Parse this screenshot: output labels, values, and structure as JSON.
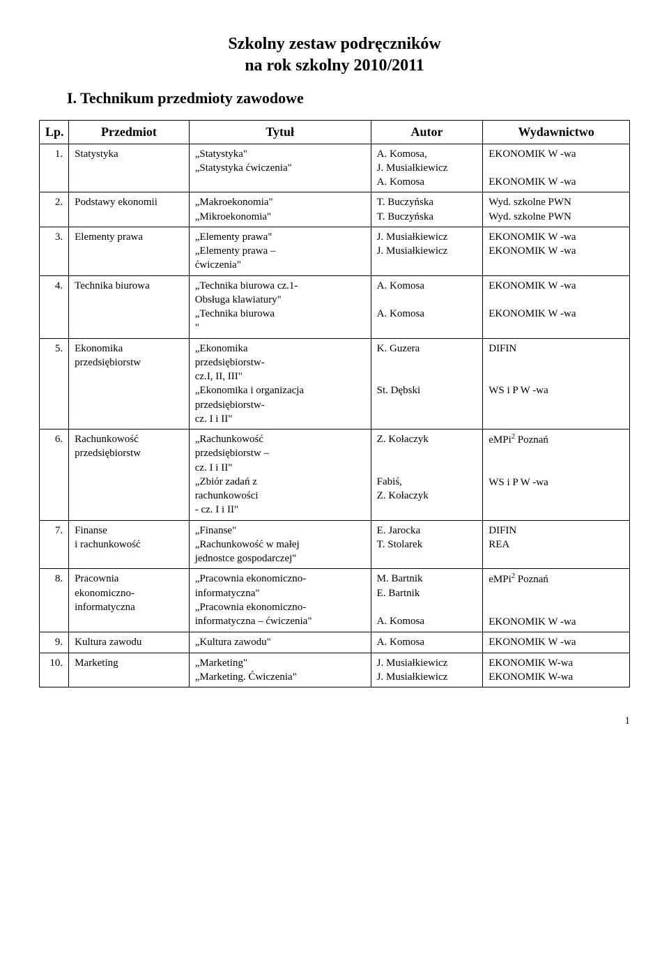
{
  "title": {
    "line1": "Szkolny zestaw podręczników",
    "line2": "na rok szkolny 2010/2011"
  },
  "section": "I.   Technikum przedmioty zawodowe",
  "columns": {
    "lp": "Lp.",
    "przedmiot": "Przedmiot",
    "tytul": "Tytuł",
    "autor": "Autor",
    "wydawnictwo": "Wydawnictwo"
  },
  "rows": [
    {
      "lp": "1.",
      "przedmiot": "Statystyka",
      "tytul": "„Statystyka\"\n„Statystyka ćwiczenia\"",
      "autor": "A. Komosa,\nJ. Musiałkiewicz\nA. Komosa",
      "wydawnictwo": "EKONOMIK W -wa\n\nEKONOMIK W -wa"
    },
    {
      "lp": "2.",
      "przedmiot": "Podstawy ekonomii",
      "tytul": "„Makroekonomia\"\n„Mikroekonomia\"",
      "autor": "T. Buczyńska\nT. Buczyńska",
      "wydawnictwo": "Wyd. szkolne PWN\nWyd. szkolne PWN"
    },
    {
      "lp": "3.",
      "przedmiot": "Elementy prawa",
      "tytul": "„Elementy prawa\"\n„Elementy prawa –\nćwiczenia\"",
      "autor": "J. Musiałkiewicz\nJ. Musiałkiewicz",
      "wydawnictwo": "EKONOMIK W -wa\nEKONOMIK W -wa"
    },
    {
      "lp": "4.",
      "przedmiot": "Technika biurowa",
      "tytul": "„Technika biurowa cz.1-\nObsługa klawiatury\"\n„Technika biurowa\n\"",
      "autor": "A. Komosa\n\nA. Komosa",
      "wydawnictwo": "EKONOMIK W -wa\n\nEKONOMIK W -wa"
    },
    {
      "lp": "5.",
      "przedmiot": "Ekonomika\nprzedsiębiorstw",
      "tytul": "„Ekonomika\nprzedsiębiorstw-\ncz.I, II, III\"\n„Ekonomika i organizacja\nprzedsiębiorstw-\n cz. I i II\"",
      "autor": "K. Guzera\n\n\nSt. Dębski",
      "wydawnictwo": "DIFIN\n\n\nWS i P W -wa"
    },
    {
      "lp": "6.",
      "przedmiot": "Rachunkowość\nprzedsiębiorstw",
      "tytul": "„Rachunkowość\nprzedsiębiorstw –\ncz. I i II\"\n„Zbiór zadań z\nrachunkowości\n- cz. I i II\"",
      "autor": "Z. Kołaczyk\n\n\nFabiś,\nZ. Kołaczyk",
      "wydawnictwo_html": "eMPi<span class=\"sup\">2</span> Poznań\n\n\nWS i P W -wa"
    },
    {
      "lp": "7.",
      "przedmiot": "Finanse\ni rachunkowość",
      "tytul": "„Finanse\"\n„Rachunkowość w małej\njednostce gospodarczej\"",
      "autor": "E. Jarocka\nT. Stolarek",
      "wydawnictwo": "DIFIN\nREA"
    },
    {
      "lp": "8.",
      "przedmiot": "Pracownia\nekonomiczno-\ninformatyczna",
      "tytul": "„Pracownia ekonomiczno-\ninformatyczna\"\n„Pracownia ekonomiczno-\ninformatyczna – ćwiczenia\"",
      "autor": "M. Bartnik\nE. Bartnik\n\nA. Komosa",
      "wydawnictwo_html": "eMPi<span class=\"sup\">2</span> Poznań\n\n\nEKONOMIK W -wa"
    },
    {
      "lp": "9.",
      "przedmiot": "Kultura zawodu",
      "tytul": "„Kultura zawodu\"",
      "autor": "A. Komosa",
      "wydawnictwo": "EKONOMIK W -wa"
    },
    {
      "lp": "10.",
      "przedmiot": "Marketing",
      "tytul": "„Marketing\"\n„Marketing. Ćwiczenia\"",
      "autor": "J. Musiałkiewicz\nJ. Musiałkiewicz",
      "wydawnictwo": "EKONOMIK W-wa\nEKONOMIK W-wa"
    }
  ],
  "page_number": "1"
}
